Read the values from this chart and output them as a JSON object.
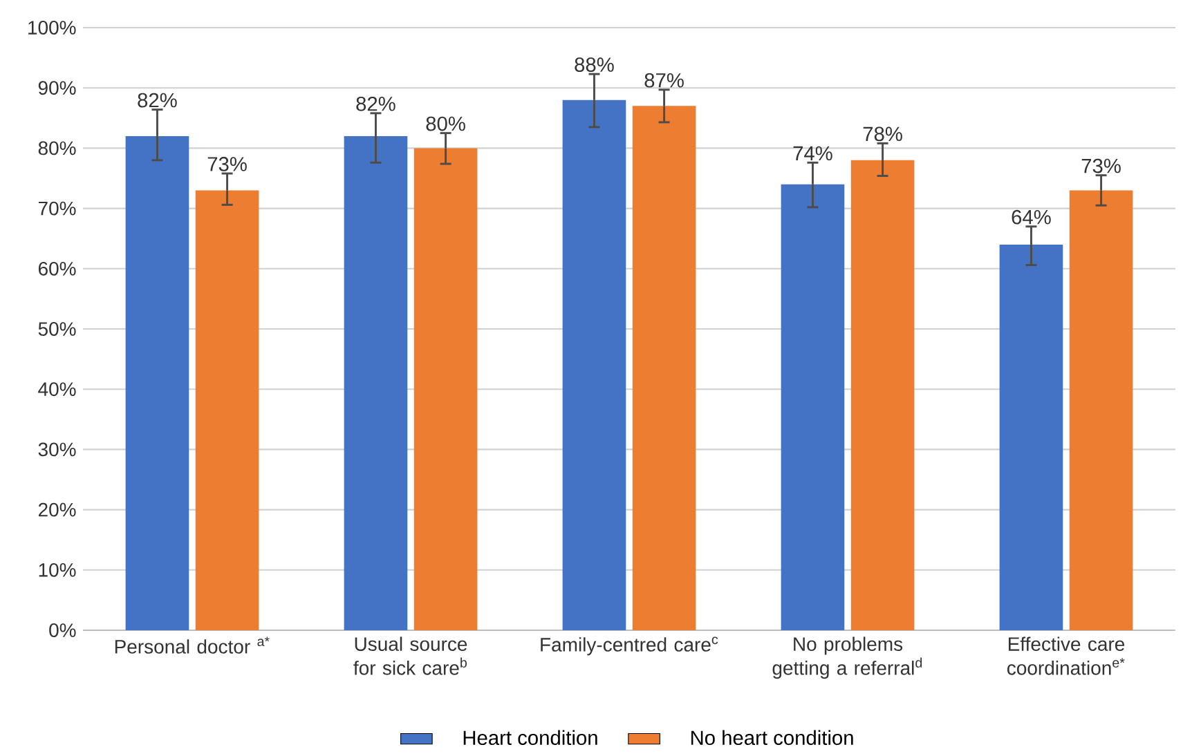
{
  "chart_data": {
    "type": "bar",
    "categories": [
      "Personal doctor $^{a*}$",
      "Usual source for sick care$^{b}$",
      "Family-centred care$^{c}$",
      "No problems getting a referral$^{d}$",
      "Effective care coordination$^{e*}$"
    ],
    "series": [
      {
        "name": "Heart condition",
        "color": "#4472c4",
        "values": [
          82,
          82,
          88,
          74,
          64
        ],
        "errors": [
          [
            78,
            86.4
          ],
          [
            77.6,
            85.8
          ],
          [
            83.5,
            92.3
          ],
          [
            70.2,
            77.6
          ],
          [
            60.6,
            67
          ]
        ],
        "value_labels": [
          "82%",
          "82%",
          "88%",
          "74%",
          "64%"
        ]
      },
      {
        "name": "No heart condition",
        "color": "#ed7d31",
        "values": [
          73,
          80,
          87,
          78,
          73
        ],
        "errors": [
          [
            70.6,
            75.8
          ],
          [
            77.4,
            82.5
          ],
          [
            84.3,
            89.7
          ],
          [
            75.4,
            80.8
          ],
          [
            70.5,
            75.5
          ]
        ],
        "value_labels": [
          "73%",
          "80%",
          "87%",
          "78%",
          "73%"
        ]
      }
    ],
    "ylim": [
      0,
      100
    ],
    "yticks": [
      {
        "value": 0,
        "label": "0%"
      },
      {
        "value": 10,
        "label": "10%"
      },
      {
        "value": 20,
        "label": "20%"
      },
      {
        "value": 30,
        "label": "30%"
      },
      {
        "value": 40,
        "label": "40%"
      },
      {
        "value": 50,
        "label": "50%"
      },
      {
        "value": 60,
        "label": "60%"
      },
      {
        "value": 70,
        "label": "70%"
      },
      {
        "value": 80,
        "label": "80%"
      },
      {
        "value": 90,
        "label": "90%"
      },
      {
        "value": 100,
        "label": "100%"
      }
    ],
    "grid": "y",
    "legend": "bottom"
  }
}
